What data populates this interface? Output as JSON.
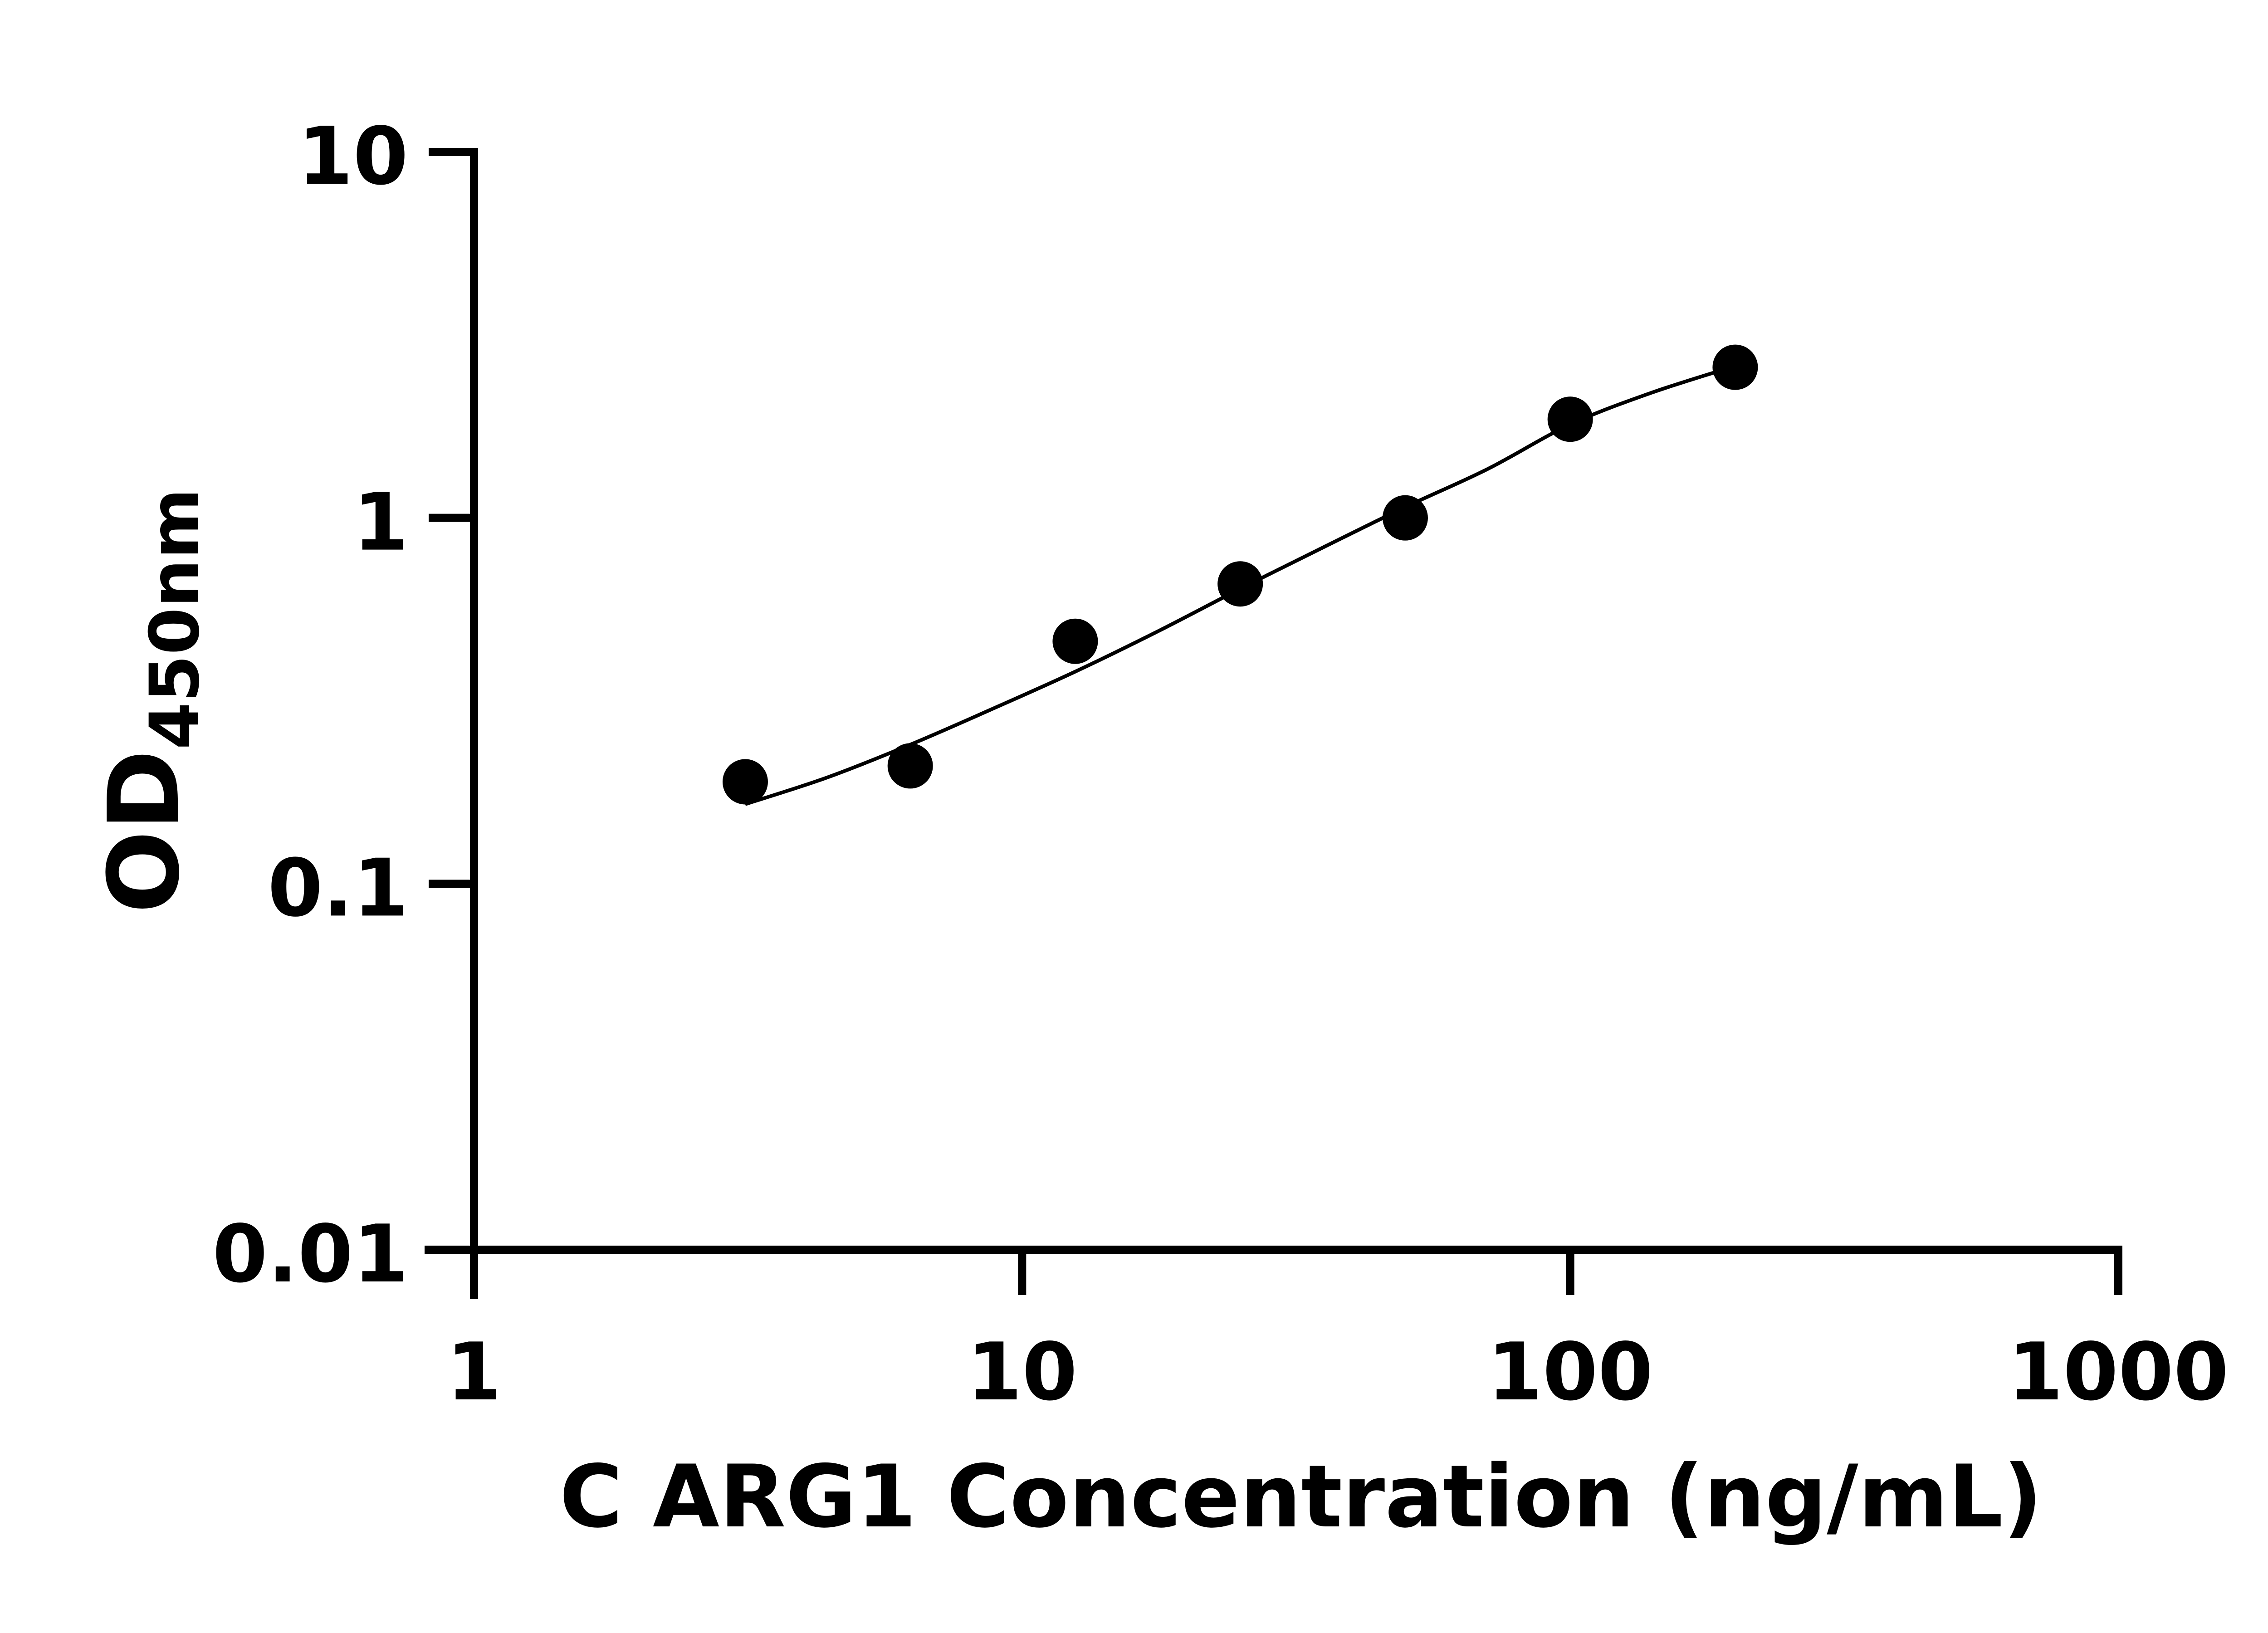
{
  "chart_data": {
    "type": "scatter",
    "title": "",
    "xlabel": "C ARG1 Concentration (ng/mL)",
    "ylabel": {
      "main": "OD",
      "subscript": "450nm"
    },
    "x_scale": "log",
    "y_scale": "log",
    "xlim": [
      1,
      1000
    ],
    "ylim": [
      0.01,
      10
    ],
    "x_ticks": [
      {
        "value": 1,
        "label": "1"
      },
      {
        "value": 10,
        "label": "10"
      },
      {
        "value": 100,
        "label": "100"
      },
      {
        "value": 1000,
        "label": "1000"
      }
    ],
    "y_ticks": [
      {
        "value": 10,
        "label": "10"
      },
      {
        "value": 1,
        "label": "1"
      },
      {
        "value": 0.1,
        "label": "0.1"
      },
      {
        "value": 0.01,
        "label": "0.01"
      }
    ],
    "grid": false,
    "series": [
      {
        "marker": "filled-circle",
        "color": "#000000",
        "points": [
          {
            "x": 3.125,
            "y": 0.19
          },
          {
            "x": 6.25,
            "y": 0.21
          },
          {
            "x": 12.5,
            "y": 0.46
          },
          {
            "x": 25,
            "y": 0.66
          },
          {
            "x": 50,
            "y": 1.0
          },
          {
            "x": 100,
            "y": 1.86
          },
          {
            "x": 200,
            "y": 2.58
          }
        ]
      }
    ],
    "fit_curve": {
      "color": "#000000",
      "points": [
        {
          "x": 3.125,
          "y": 0.165
        },
        {
          "x": 4.4,
          "y": 0.195
        },
        {
          "x": 6.25,
          "y": 0.24
        },
        {
          "x": 8.8,
          "y": 0.3
        },
        {
          "x": 12.5,
          "y": 0.38
        },
        {
          "x": 17.7,
          "y": 0.49
        },
        {
          "x": 25,
          "y": 0.64
        },
        {
          "x": 35.4,
          "y": 0.83
        },
        {
          "x": 50,
          "y": 1.07
        },
        {
          "x": 70.7,
          "y": 1.36
        },
        {
          "x": 100,
          "y": 1.8
        },
        {
          "x": 141,
          "y": 2.2
        },
        {
          "x": 200,
          "y": 2.6
        }
      ]
    }
  }
}
